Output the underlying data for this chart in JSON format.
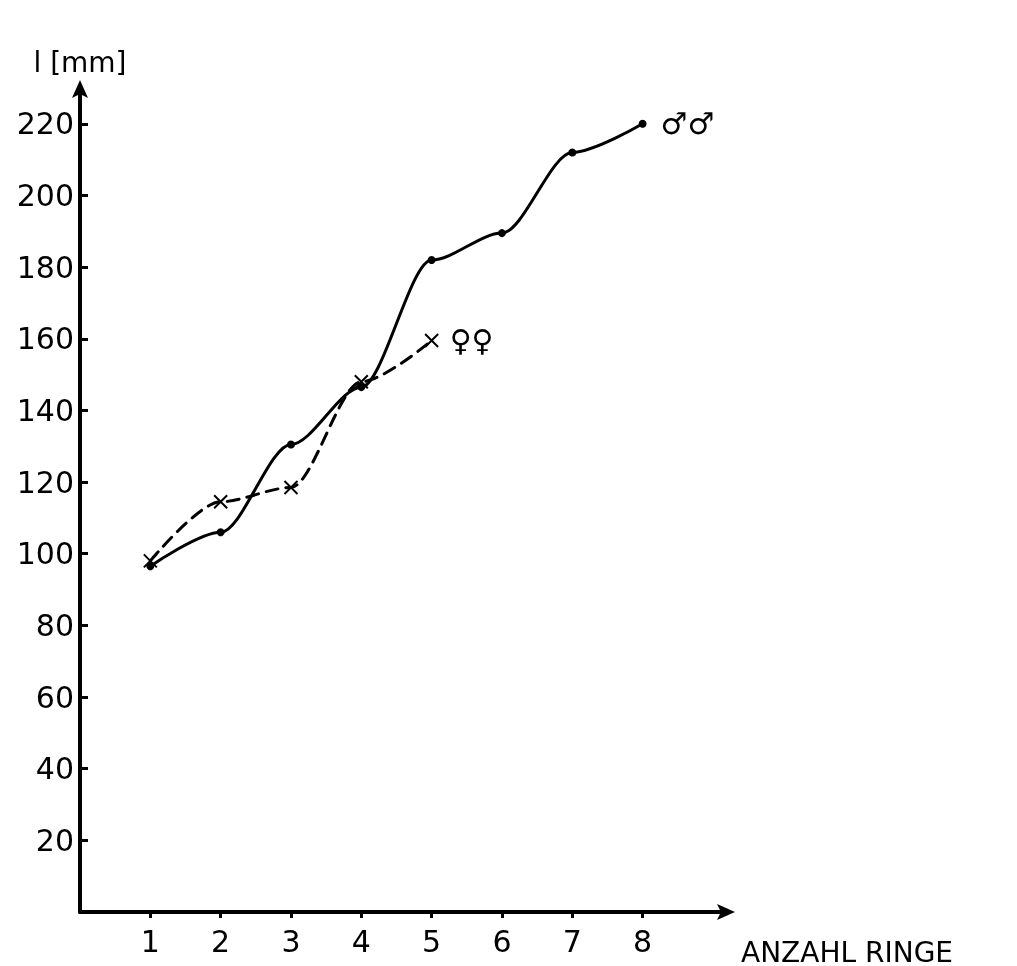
{
  "chart_data": {
    "type": "line",
    "xlabel": "ANZAHL RINGE",
    "ylabel": "l [mm]",
    "x": [
      1,
      2,
      3,
      4,
      5,
      6,
      7,
      8
    ],
    "xlim": [
      0,
      9.2
    ],
    "xticks": [
      1,
      2,
      3,
      4,
      5,
      6,
      7,
      8
    ],
    "ylim": [
      0,
      230
    ],
    "yticks": [
      20,
      40,
      60,
      80,
      100,
      120,
      140,
      160,
      180,
      200,
      220
    ],
    "grid": false,
    "legend": false,
    "series": [
      {
        "name": "♂♂",
        "color": "#000000",
        "marker": "circle",
        "line_style": "solid",
        "values": [
          96.5,
          106,
          130.5,
          146.5,
          182,
          189.5,
          212,
          220
        ]
      },
      {
        "name": "♀♀",
        "color": "#000000",
        "marker": "cross",
        "line_style": "dashed",
        "x": [
          1,
          2,
          3,
          4,
          5
        ],
        "values": [
          98,
          114.5,
          118.5,
          148,
          159.5
        ]
      }
    ]
  }
}
